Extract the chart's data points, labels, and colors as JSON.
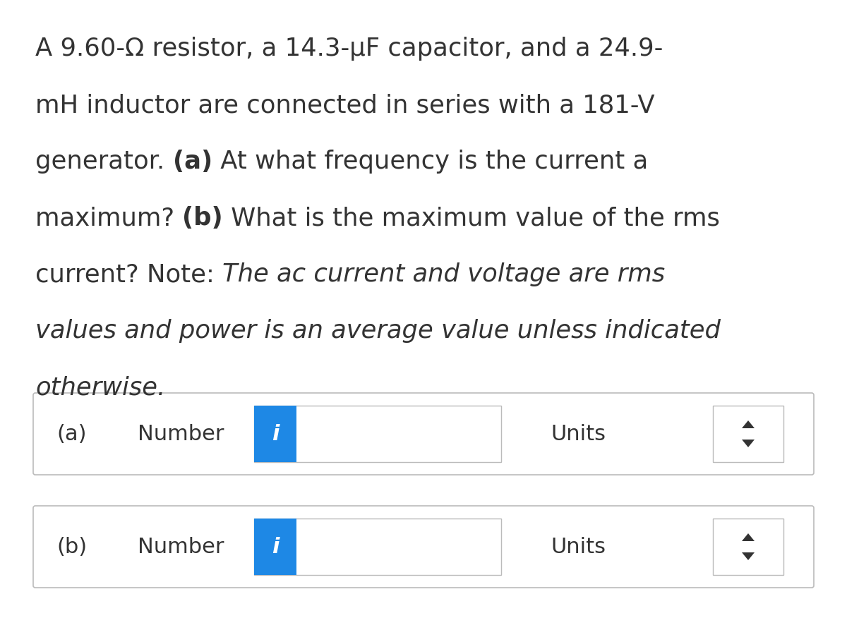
{
  "background_color": "#ffffff",
  "text_color": "#333333",
  "blue_color": "#1e88e5",
  "box_border_color": "#bbbbbb",
  "input_border_color": "#bbbbbb",
  "lines": [
    [
      {
        "text": "A 9.60-Ω resistor, a 14.3-μF capacitor, and a 24.9-",
        "bold": false,
        "italic": false
      }
    ],
    [
      {
        "text": "mH inductor are connected in series with a 181-V",
        "bold": false,
        "italic": false
      }
    ],
    [
      {
        "text": "generator. ",
        "bold": false,
        "italic": false
      },
      {
        "text": "(a)",
        "bold": true,
        "italic": false
      },
      {
        "text": " At what frequency is the current a",
        "bold": false,
        "italic": false
      }
    ],
    [
      {
        "text": "maximum? ",
        "bold": false,
        "italic": false
      },
      {
        "text": "(b)",
        "bold": true,
        "italic": false
      },
      {
        "text": " What is the maximum value of the rms",
        "bold": false,
        "italic": false
      }
    ],
    [
      {
        "text": "current? Note: ",
        "bold": false,
        "italic": false
      },
      {
        "text": "The ac current and voltage are rms",
        "bold": false,
        "italic": true
      }
    ],
    [
      {
        "text": "values and power is an average value unless indicated",
        "bold": false,
        "italic": true
      }
    ],
    [
      {
        "text": "otherwise.",
        "bold": false,
        "italic": true
      }
    ]
  ],
  "rows": [
    {
      "label": "(a)",
      "number_text": "Number",
      "units_text": "Units"
    },
    {
      "label": "(b)",
      "number_text": "Number",
      "units_text": "Units"
    }
  ],
  "font_size": 25.5,
  "row_font_size": 22,
  "i_text": "i"
}
